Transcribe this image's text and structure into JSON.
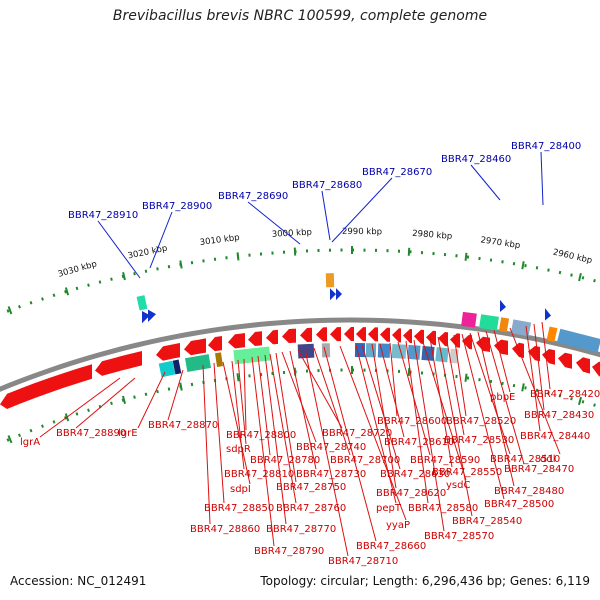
{
  "title": "Brevibacillus brevis NBRC 100599, complete genome",
  "footer": {
    "accession": "Accession: NC_012491",
    "summary": "Topology: circular; Length: 6,296,436 bp; Genes: 6,119"
  },
  "colors": {
    "forward_label": "#0000aa",
    "reverse_label": "#cc0000",
    "reverse_gene": "#ee1111",
    "forward_gene": "#1133cc",
    "backbone": "#888888",
    "ruler": "#22882e"
  },
  "scale_labels": [
    "3030 kbp",
    "3020 kbp",
    "3010 kbp",
    "3000 kbp",
    "2990 kbp",
    "2980 kbp",
    "2970 kbp",
    "2960 kbp"
  ],
  "forward_labels": [
    "BBR47_28910",
    "BBR47_28900",
    "BBR47_28690",
    "BBR47_28680",
    "BBR47_28670",
    "BBR47_28460",
    "BBR47_28400"
  ],
  "reverse_labels": [
    "lgrA",
    "BBR47_28890",
    "lgrE",
    "BBR47_28870",
    "BBR47_28860",
    "BBR47_28850",
    "sdpI",
    "BBR47_28810",
    "sdpR",
    "BBR47_28800",
    "BBR47_28790",
    "BBR47_28780",
    "BBR47_28770",
    "BBR47_28760",
    "BBR47_28750",
    "BBR47_28740",
    "BBR47_28730",
    "BBR47_28720",
    "BBR47_28710",
    "BBR47_28700",
    "BBR47_28660",
    "yyaP",
    "pepT",
    "BBR47_28630",
    "BBR47_28620",
    "BBR47_28610",
    "BBR47_28600",
    "BBR47_28590",
    "BBR47_28580",
    "BBR47_28570",
    "ysdC",
    "BBR47_28550",
    "BBR47_28540",
    "BBR47_28530",
    "BBR47_28520",
    "BBR47_28500",
    "BBR47_28510",
    "BBR47_28480",
    "BBR47_28470",
    "pbpE",
    "ddl",
    "BBR47_28440",
    "BBR47_28430",
    "BBR47_28420"
  ]
}
